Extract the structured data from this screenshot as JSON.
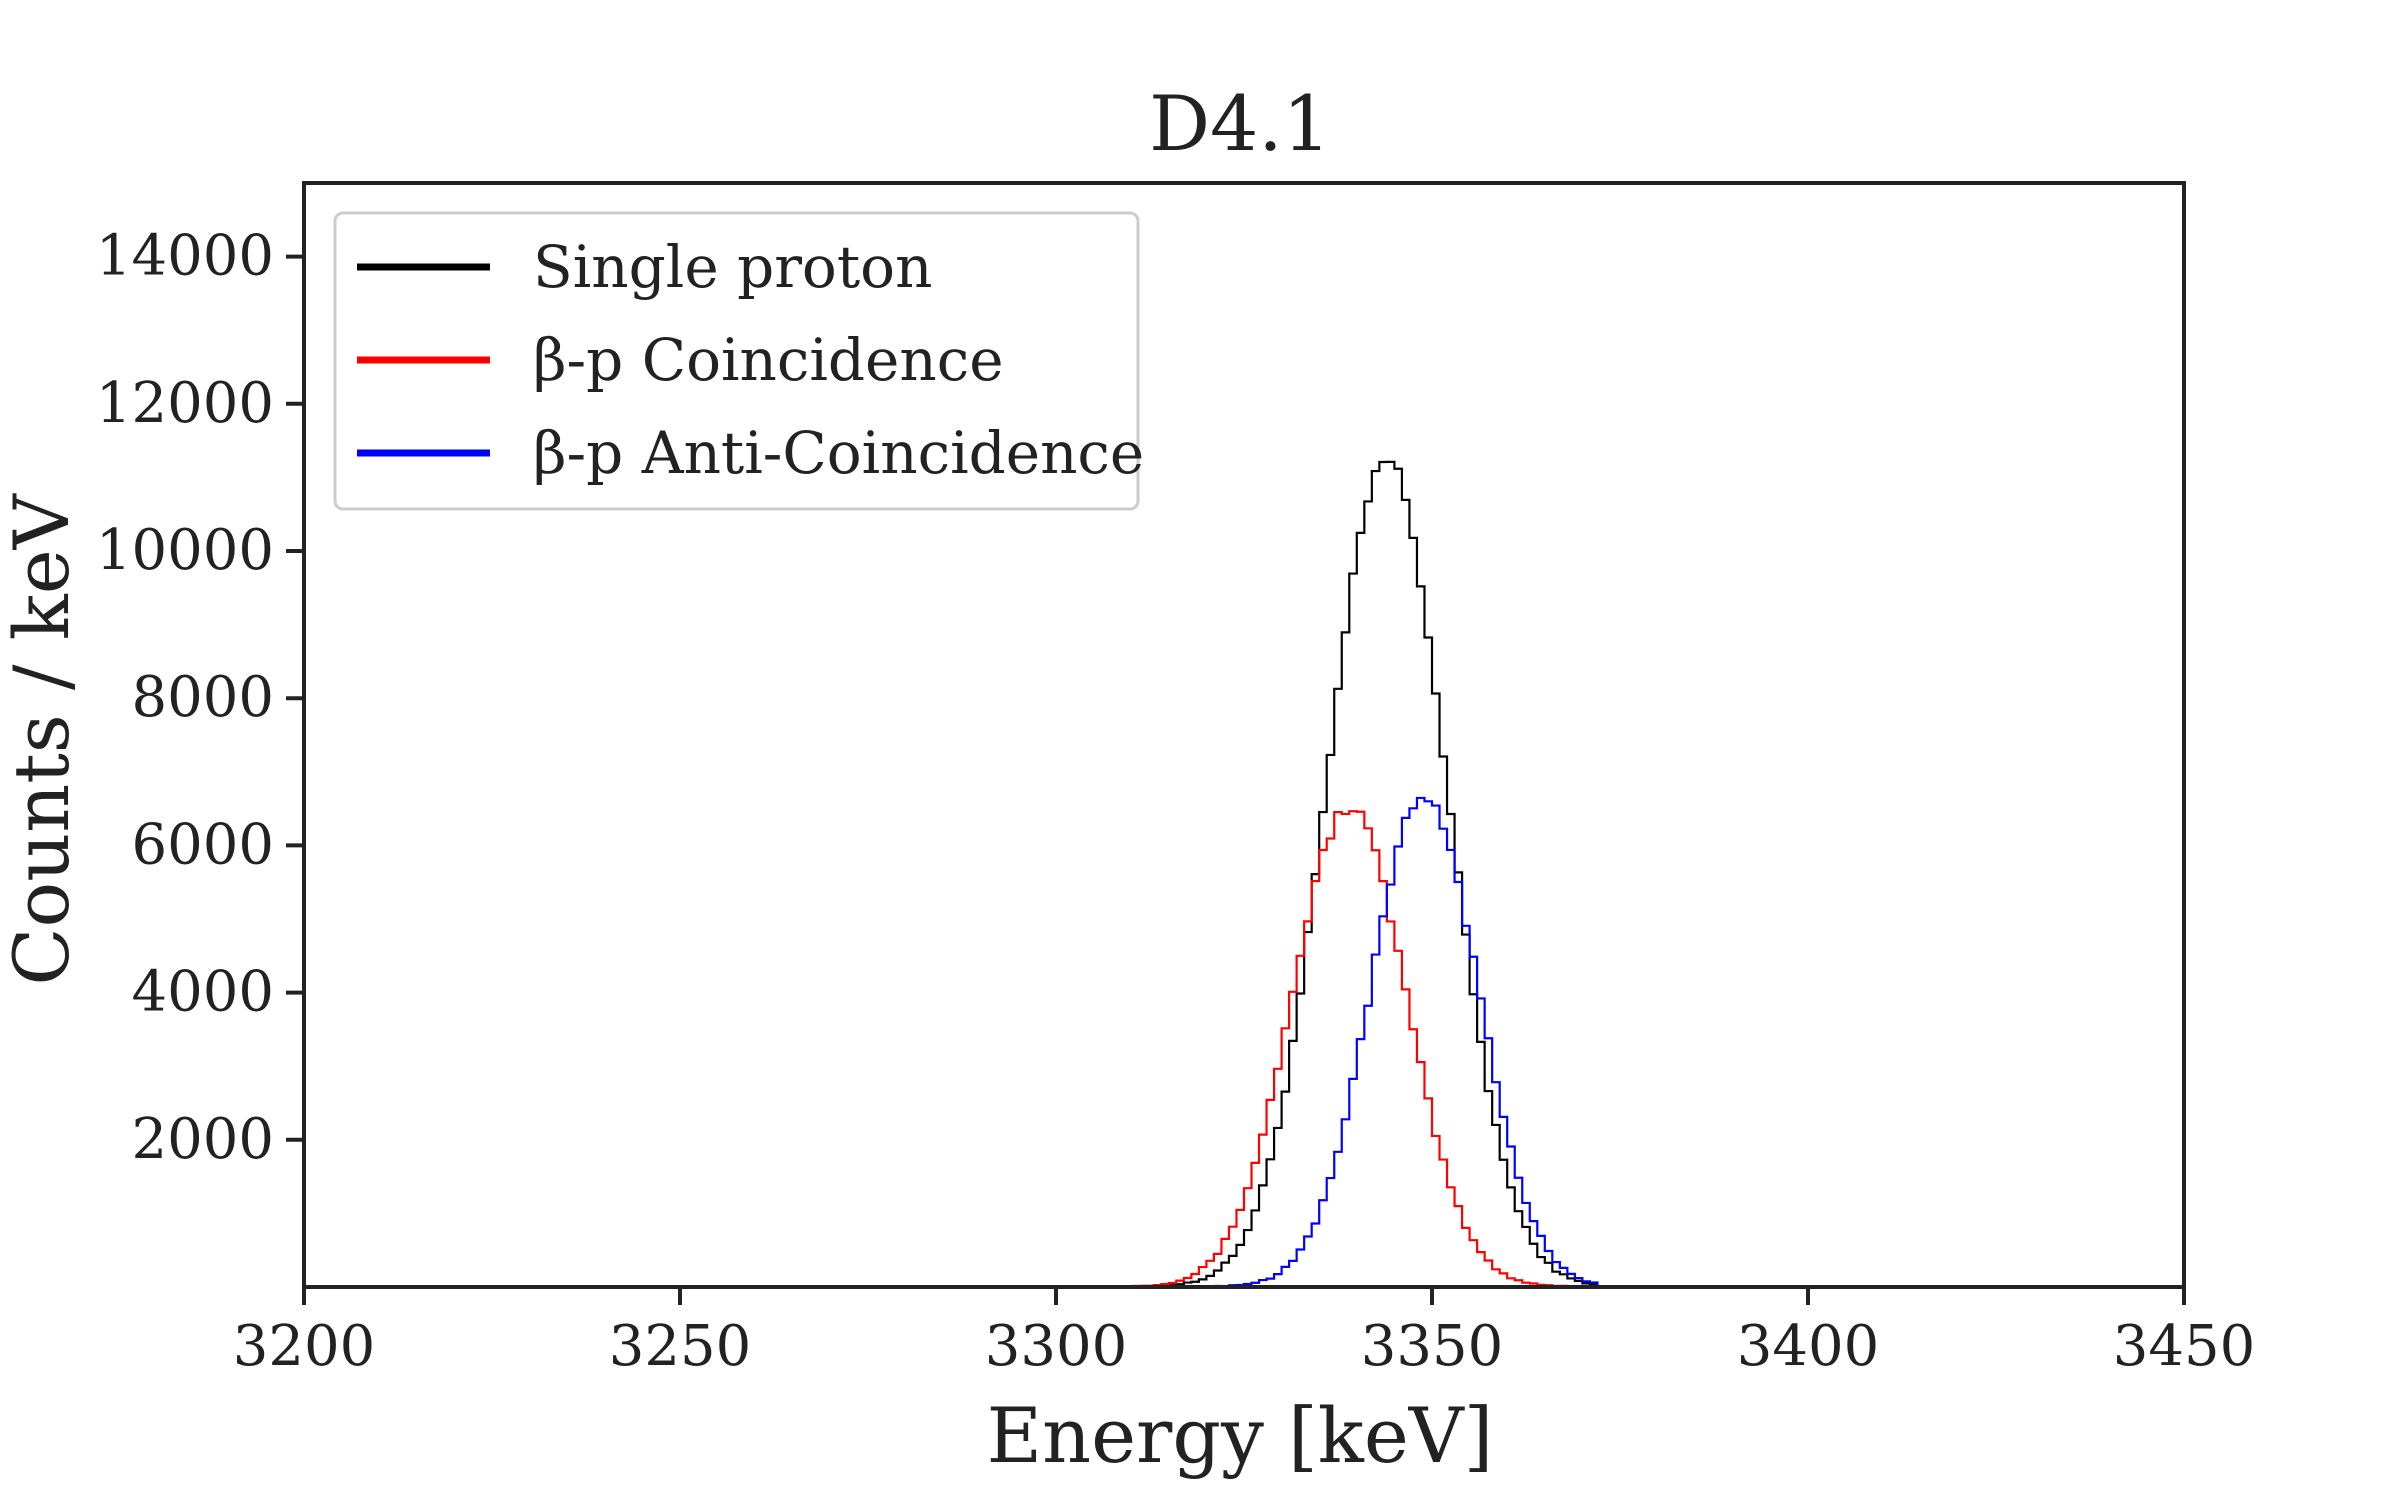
{
  "chart_data": {
    "type": "line",
    "title": "D4.1",
    "xlabel": "Energy [keV]",
    "ylabel": "Counts / keV",
    "xlim": [
      3200,
      3450
    ],
    "ylim": [
      0,
      15000
    ],
    "x_ticks": [
      3200,
      3250,
      3300,
      3350,
      3400,
      3450
    ],
    "y_ticks": [
      2000,
      4000,
      6000,
      8000,
      10000,
      12000,
      14000
    ],
    "grid": false,
    "legend_position": "top-left",
    "bin_width_keV": 1,
    "series": [
      {
        "name": "Single proton",
        "color": "#000000",
        "gaussian_components": [
          {
            "amplitude": 11200,
            "mean": 3344,
            "sigma": 8.0
          }
        ],
        "x_range": [
          3295,
          3372
        ]
      },
      {
        "name": "β-p Coincidence",
        "color": "#ff0000",
        "gaussian_components": [
          {
            "amplitude": 6500,
            "mean": 3339,
            "sigma": 7.6
          }
        ],
        "x_range": [
          3300,
          3368
        ]
      },
      {
        "name": "β-p Anti-Coincidence",
        "color": "#0000ff",
        "gaussian_components": [
          {
            "amplitude": 6650,
            "mean": 3349,
            "sigma": 7.2
          }
        ],
        "x_range": [
          3300,
          3372
        ]
      }
    ]
  }
}
